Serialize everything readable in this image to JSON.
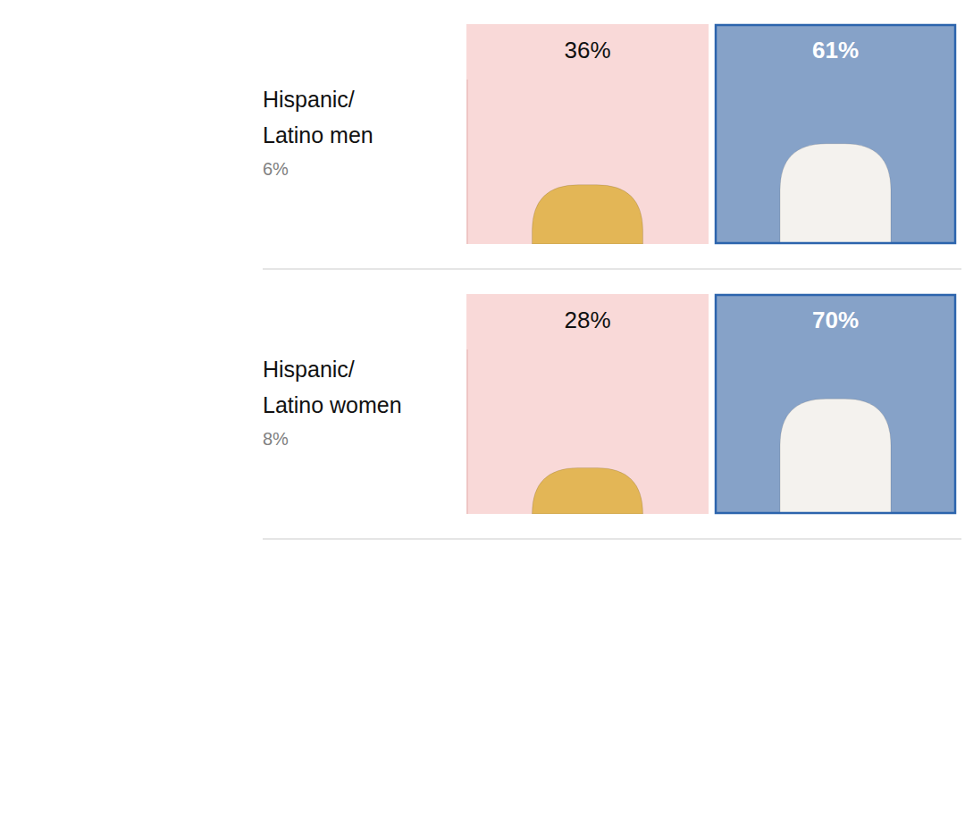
{
  "chart_data": {
    "type": "bar",
    "categories": [
      "Hispanic/Latino men",
      "Hispanic/Latino women"
    ],
    "category_shares": [
      "6%",
      "8%"
    ],
    "series": [
      {
        "color": "#e3b656",
        "values": [
          36,
          28
        ],
        "value_labels": [
          "36%",
          "28%"
        ]
      },
      {
        "color": "#f4f2ee",
        "values": [
          61,
          70
        ],
        "value_labels": [
          "61%",
          "70%"
        ]
      }
    ],
    "ylim": [
      0,
      100
    ],
    "data_labels": true,
    "tick_labels": false
  }
}
